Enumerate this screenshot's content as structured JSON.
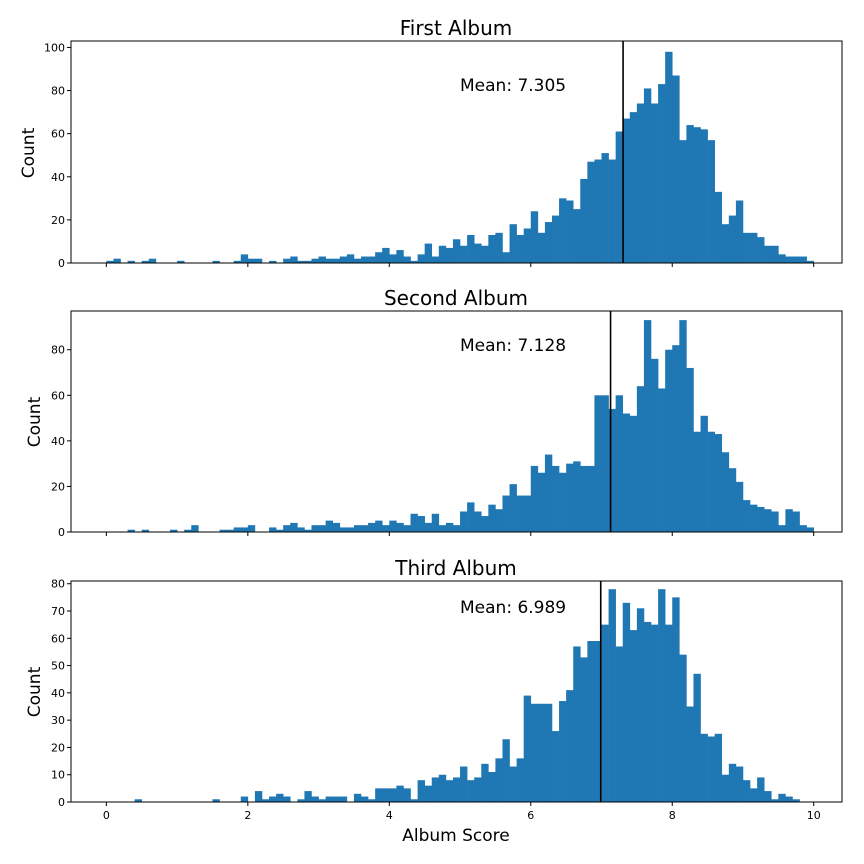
{
  "chart_data": [
    {
      "type": "bar",
      "title": "First Album",
      "ylabel": "Count",
      "xlabel": "",
      "xlim": [
        -0.5,
        10.4
      ],
      "ylim": [
        0,
        103
      ],
      "yticks": [
        0,
        20,
        40,
        60,
        80,
        100
      ],
      "xticks": [
        0,
        2,
        4,
        6,
        8,
        10
      ],
      "show_xtick_labels": false,
      "bin_start": 0.0,
      "bin_width": 0.1,
      "values": [
        1,
        2,
        0,
        1,
        0,
        1,
        2,
        0,
        0,
        0,
        1,
        0,
        0,
        0,
        0,
        1,
        0,
        0,
        1,
        4,
        2,
        2,
        0,
        1,
        0,
        2,
        3,
        1,
        1,
        2,
        3,
        2,
        2,
        3,
        4,
        2,
        3,
        3,
        5,
        7,
        4,
        6,
        3,
        1,
        4,
        9,
        3,
        8,
        7,
        11,
        8,
        13,
        9,
        8,
        13,
        14,
        5,
        18,
        13,
        16,
        24,
        14,
        19,
        22,
        30,
        29,
        25,
        39,
        47,
        48,
        51,
        48,
        61,
        67,
        70,
        74,
        81,
        74,
        83,
        98,
        87,
        57,
        64,
        63,
        62,
        57,
        33,
        18,
        22,
        29,
        14,
        14,
        12,
        8,
        8,
        4,
        3,
        3,
        3,
        1
      ],
      "mean": 7.305,
      "mean_label": "Mean: 7.305"
    },
    {
      "type": "bar",
      "title": "Second Album",
      "ylabel": "Count",
      "xlabel": "",
      "xlim": [
        -0.5,
        10.4
      ],
      "ylim": [
        0,
        97
      ],
      "yticks": [
        0,
        20,
        40,
        60,
        80
      ],
      "xticks": [
        0,
        2,
        4,
        6,
        8,
        10
      ],
      "show_xtick_labels": false,
      "bin_start": 0.0,
      "bin_width": 0.1,
      "values": [
        0,
        0,
        0,
        1,
        0,
        1,
        0,
        0,
        0,
        1,
        0,
        1,
        3,
        0,
        0,
        0,
        1,
        1,
        2,
        2,
        3,
        0,
        0,
        2,
        1,
        3,
        4,
        2,
        1,
        3,
        3,
        5,
        4,
        2,
        2,
        3,
        3,
        4,
        5,
        3,
        5,
        4,
        3,
        8,
        7,
        4,
        8,
        3,
        4,
        3,
        9,
        13,
        9,
        7,
        12,
        10,
        16,
        21,
        16,
        16,
        29,
        26,
        34,
        29,
        26,
        30,
        31,
        29,
        29,
        60,
        60,
        54,
        60,
        52,
        51,
        64,
        93,
        76,
        63,
        80,
        82,
        93,
        72,
        44,
        51,
        44,
        43,
        35,
        28,
        22,
        14,
        12,
        11,
        10,
        9,
        3,
        10,
        9,
        3,
        2
      ],
      "mean": 7.128,
      "mean_label": "Mean: 7.128"
    },
    {
      "type": "bar",
      "title": "Third Album",
      "ylabel": "Count",
      "xlabel": "Album Score",
      "xlim": [
        -0.5,
        10.4
      ],
      "ylim": [
        0,
        81
      ],
      "yticks": [
        0,
        10,
        20,
        30,
        40,
        50,
        60,
        70,
        80
      ],
      "xticks": [
        0,
        2,
        4,
        6,
        8,
        10
      ],
      "show_xtick_labels": true,
      "bin_start": 0.0,
      "bin_width": 0.1,
      "values": [
        0,
        0,
        0,
        0,
        1,
        0,
        0,
        0,
        0,
        0,
        0,
        0,
        0,
        0,
        0,
        1,
        0,
        0,
        0,
        2,
        0,
        4,
        1,
        2,
        3,
        2,
        0,
        1,
        4,
        2,
        1,
        2,
        2,
        2,
        0,
        3,
        2,
        1,
        5,
        5,
        5,
        6,
        5,
        1,
        8,
        6,
        9,
        10,
        8,
        9,
        13,
        8,
        9,
        14,
        11,
        16,
        23,
        13,
        16,
        39,
        36,
        36,
        36,
        26,
        37,
        41,
        57,
        53,
        59,
        59,
        65,
        78,
        57,
        73,
        63,
        71,
        66,
        65,
        78,
        65,
        75,
        54,
        35,
        47,
        25,
        24,
        25,
        10,
        14,
        13,
        8,
        5,
        9,
        4,
        1,
        3,
        2,
        1,
        0,
        0
      ],
      "mean": 6.989,
      "mean_label": "Mean: 6.989"
    }
  ]
}
